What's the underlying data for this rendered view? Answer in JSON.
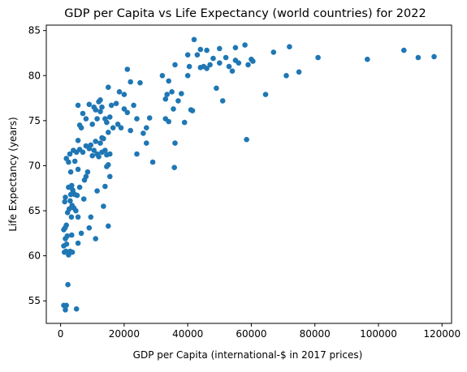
{
  "chart_data": {
    "type": "scatter",
    "title": "GDP per Capita vs Life Expectancy (world countries) for 2022",
    "xlabel": "GDP per Capita (international-$ in 2017 prices)",
    "ylabel": "Life Expectancy (years)",
    "xlim": [
      -4500,
      123000
    ],
    "ylim": [
      52.5,
      85.6
    ],
    "xticks": [
      0,
      20000,
      40000,
      60000,
      80000,
      100000,
      120000
    ],
    "yticks": [
      55,
      60,
      65,
      70,
      75,
      80,
      85
    ],
    "grid": false,
    "marker_color": "#1f77b4",
    "points": [
      [
        1000,
        54.5
      ],
      [
        1500,
        54.0
      ],
      [
        1800,
        54.5
      ],
      [
        5000,
        54.1
      ],
      [
        2300,
        56.8
      ],
      [
        1000,
        61.1
      ],
      [
        1200,
        60.4
      ],
      [
        1500,
        61.9
      ],
      [
        1700,
        60.5
      ],
      [
        1900,
        61.3
      ],
      [
        2100,
        62.2
      ],
      [
        2500,
        60.1
      ],
      [
        3000,
        60.5
      ],
      [
        3500,
        62.3
      ],
      [
        3700,
        60.4
      ],
      [
        5500,
        61.4
      ],
      [
        11000,
        61.9
      ],
      [
        1000,
        62.9
      ],
      [
        1400,
        63.1
      ],
      [
        1300,
        66.0
      ],
      [
        1500,
        66.5
      ],
      [
        1800,
        63.4
      ],
      [
        2200,
        64.8
      ],
      [
        2500,
        67.6
      ],
      [
        2700,
        65.2
      ],
      [
        3000,
        66.1
      ],
      [
        3200,
        66.8
      ],
      [
        3400,
        64.3
      ],
      [
        3600,
        65.6
      ],
      [
        3800,
        67.3
      ],
      [
        4000,
        67.0
      ],
      [
        4200,
        65.3
      ],
      [
        4500,
        66.8
      ],
      [
        4800,
        65.0
      ],
      [
        5200,
        66.7
      ],
      [
        5500,
        64.3
      ],
      [
        6000,
        67.6
      ],
      [
        6500,
        62.5
      ],
      [
        7300,
        66.3
      ],
      [
        8000,
        68.8
      ],
      [
        9000,
        63.1
      ],
      [
        9500,
        64.3
      ],
      [
        11500,
        67.2
      ],
      [
        13500,
        65.5
      ],
      [
        14000,
        67.7
      ],
      [
        15500,
        68.8
      ],
      [
        15000,
        63.3
      ],
      [
        1800,
        70.8
      ],
      [
        2500,
        70.4
      ],
      [
        2900,
        71.3
      ],
      [
        3200,
        69.3
      ],
      [
        3500,
        67.8
      ],
      [
        4000,
        71.7
      ],
      [
        4500,
        70.5
      ],
      [
        5000,
        71.5
      ],
      [
        5500,
        69.6
      ],
      [
        6000,
        71.8
      ],
      [
        7000,
        71.5
      ],
      [
        7500,
        68.4
      ],
      [
        8000,
        72.2
      ],
      [
        8500,
        69.3
      ],
      [
        9000,
        71.9
      ],
      [
        9500,
        72.3
      ],
      [
        10000,
        71.1
      ],
      [
        10500,
        71.7
      ],
      [
        11000,
        72.7
      ],
      [
        11500,
        71.3
      ],
      [
        12000,
        71.0
      ],
      [
        13000,
        71.5
      ],
      [
        14000,
        71.7
      ],
      [
        14500,
        71.2
      ],
      [
        15000,
        70.1
      ],
      [
        15500,
        71.3
      ],
      [
        13000,
        73.1
      ],
      [
        12500,
        72.5
      ],
      [
        14500,
        69.9
      ],
      [
        5500,
        72.8
      ],
      [
        6000,
        74.5
      ],
      [
        6500,
        74.2
      ],
      [
        7000,
        75.8
      ],
      [
        8000,
        75.2
      ],
      [
        9000,
        76.8
      ],
      [
        10000,
        74.6
      ],
      [
        10500,
        76.5
      ],
      [
        11000,
        76.2
      ],
      [
        11500,
        75.2
      ],
      [
        12000,
        77.1
      ],
      [
        12500,
        76.0
      ],
      [
        13000,
        76.5
      ],
      [
        13500,
        73.0
      ],
      [
        14000,
        75.2
      ],
      [
        14500,
        74.8
      ],
      [
        15000,
        73.7
      ],
      [
        15500,
        75.4
      ],
      [
        16000,
        76.7
      ],
      [
        16500,
        74.2
      ],
      [
        17500,
        76.9
      ],
      [
        18000,
        74.6
      ],
      [
        19000,
        74.2
      ],
      [
        20000,
        76.3
      ],
      [
        21000,
        75.9
      ],
      [
        22000,
        73.9
      ],
      [
        23000,
        76.7
      ],
      [
        24000,
        75.2
      ],
      [
        25000,
        79.2
      ],
      [
        26000,
        73.6
      ],
      [
        27000,
        74.2
      ],
      [
        28000,
        75.3
      ],
      [
        29000,
        70.4
      ],
      [
        22000,
        79.3
      ],
      [
        21000,
        80.7
      ],
      [
        18500,
        78.2
      ],
      [
        15000,
        78.7
      ],
      [
        12500,
        77.3
      ],
      [
        20000,
        77.9
      ],
      [
        5500,
        76.7
      ],
      [
        24000,
        71.3
      ],
      [
        27000,
        72.5
      ],
      [
        32000,
        80.0
      ],
      [
        33000,
        75.2
      ],
      [
        33500,
        77.9
      ],
      [
        34000,
        79.4
      ],
      [
        35000,
        78.2
      ],
      [
        36000,
        81.2
      ],
      [
        37000,
        77.2
      ],
      [
        38000,
        78.0
      ],
      [
        39000,
        74.8
      ],
      [
        40000,
        80.0
      ],
      [
        41000,
        76.2
      ],
      [
        42000,
        84.0
      ],
      [
        43000,
        82.3
      ],
      [
        44000,
        82.9
      ],
      [
        45000,
        81.0
      ],
      [
        46000,
        82.8
      ],
      [
        47000,
        81.2
      ],
      [
        48000,
        81.9
      ],
      [
        49000,
        78.6
      ],
      [
        50000,
        81.4
      ],
      [
        51000,
        77.2
      ],
      [
        52000,
        82.0
      ],
      [
        53000,
        81.0
      ],
      [
        54000,
        80.5
      ],
      [
        55000,
        81.7
      ],
      [
        56000,
        81.4
      ],
      [
        58000,
        83.4
      ],
      [
        59000,
        81.2
      ],
      [
        60000,
        81.8
      ],
      [
        33000,
        77.4
      ],
      [
        34000,
        74.9
      ],
      [
        35500,
        76.3
      ],
      [
        35800,
        69.8
      ],
      [
        36000,
        72.5
      ],
      [
        41500,
        76.1
      ],
      [
        40000,
        82.3
      ],
      [
        44000,
        80.9
      ],
      [
        46000,
        80.8
      ],
      [
        55000,
        83.1
      ],
      [
        50000,
        83.0
      ],
      [
        58500,
        72.9
      ],
      [
        60500,
        81.6
      ],
      [
        40500,
        81.0
      ],
      [
        64500,
        77.9
      ],
      [
        67000,
        82.6
      ],
      [
        71000,
        80.0
      ],
      [
        72000,
        83.2
      ],
      [
        75000,
        80.4
      ],
      [
        81000,
        82.0
      ],
      [
        96500,
        81.8
      ],
      [
        108000,
        82.8
      ],
      [
        112500,
        82.0
      ],
      [
        117500,
        82.1
      ]
    ]
  }
}
